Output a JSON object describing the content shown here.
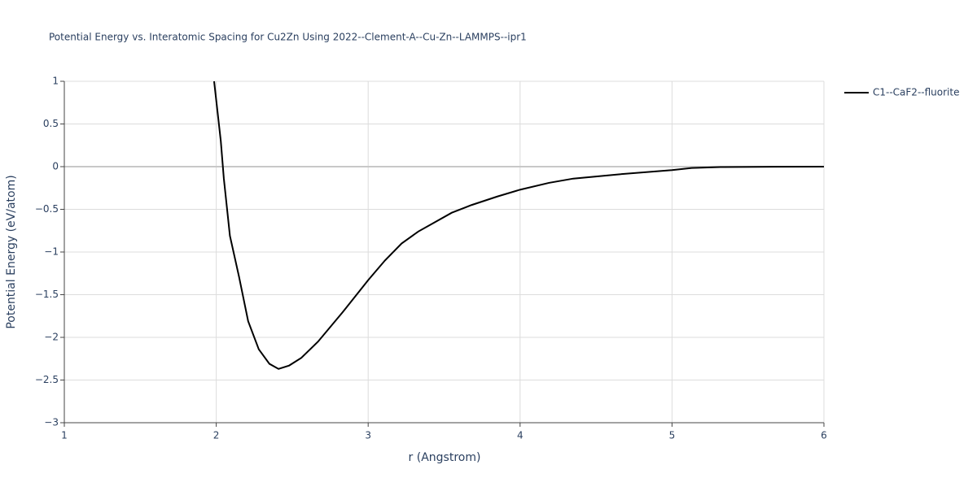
{
  "chart_data": {
    "type": "line",
    "title": "Potential Energy vs. Interatomic Spacing for Cu2Zn Using 2022--Clement-A--Cu-Zn--LAMMPS--ipr1",
    "x_label": "r (Angstrom)",
    "y_label": "Potential Energy (eV/atom)",
    "x": [
      1.986,
      2.03,
      2.05,
      2.09,
      2.15,
      2.21,
      2.28,
      2.35,
      2.41,
      2.48,
      2.56,
      2.67,
      2.83,
      3.0,
      3.11,
      3.22,
      3.33,
      3.42,
      3.55,
      3.68,
      3.85,
      4.0,
      4.19,
      4.35,
      4.65,
      5.0,
      5.13,
      5.32,
      5.67,
      6.0
    ],
    "series": [
      {
        "name": "C1--CaF2--fluorite",
        "color": "#000000",
        "values": [
          1.0,
          0.3,
          -0.14,
          -0.81,
          -1.29,
          -1.81,
          -2.14,
          -2.31,
          -2.37,
          -2.33,
          -2.24,
          -2.05,
          -1.71,
          -1.33,
          -1.1,
          -0.9,
          -0.76,
          -0.67,
          -0.54,
          -0.45,
          -0.35,
          -0.27,
          -0.19,
          -0.14,
          -0.09,
          -0.04,
          -0.015,
          -0.005,
          -0.001,
          0
        ]
      }
    ],
    "xlim": [
      1,
      6
    ],
    "ylim": [
      -3,
      1
    ],
    "xticks": [
      1,
      2,
      3,
      4,
      5,
      6
    ],
    "yticks": [
      {
        "value": -3,
        "label": "−3"
      },
      {
        "value": -2.5,
        "label": "−2.5"
      },
      {
        "value": -2,
        "label": "−2"
      },
      {
        "value": -1.5,
        "label": "−1.5"
      },
      {
        "value": -1,
        "label": "−1"
      },
      {
        "value": -0.5,
        "label": "−0.5"
      },
      0,
      0.5,
      1
    ],
    "grid": true
  }
}
